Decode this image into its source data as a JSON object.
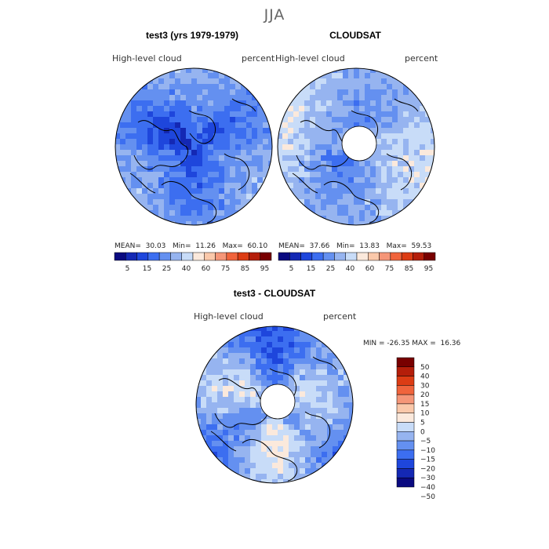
{
  "season": "JJA",
  "panels": [
    {
      "title": "test3 (yrs 1979-1979)",
      "variable": "High-level cloud",
      "units": "percent",
      "stats": {
        "mean": "30.03",
        "min": "11.26",
        "max": "60.10"
      },
      "stats_labels": {
        "mean": "MEAN=",
        "min": "Min=",
        "max": "Max="
      }
    },
    {
      "title": "CLOUDSAT",
      "variable": "High-level cloud",
      "units": "percent",
      "stats": {
        "mean": "37.66",
        "min": "13.83",
        "max": "59.53"
      },
      "stats_labels": {
        "mean": "MEAN=",
        "min": "Min=",
        "max": "Max="
      }
    },
    {
      "title": "test3 - CLOUDSAT",
      "variable": "High-level cloud",
      "units": "percent",
      "stats_line": "MIN = -26.35 MAX =  16.36"
    }
  ],
  "colorbar": {
    "colors": [
      "#0a0a80",
      "#1428b4",
      "#1e46dc",
      "#3c6ef0",
      "#6490f0",
      "#96b4f0",
      "#c8dcf8",
      "#fbe9dc",
      "#fac8aa",
      "#f59678",
      "#f0643c",
      "#dc3c14",
      "#b41e0a",
      "#780000"
    ],
    "labels": [
      "5",
      "15",
      "25",
      "40",
      "60",
      "75",
      "85",
      "95"
    ]
  },
  "diff_colorbar": {
    "colors": [
      "#780000",
      "#b41e0a",
      "#dc3c14",
      "#f0643c",
      "#f59678",
      "#fac8aa",
      "#fbe9dc",
      "#c8dcf8",
      "#96b4f0",
      "#6490f0",
      "#3c6ef0",
      "#1e46dc",
      "#1428b4",
      "#0a0a80"
    ],
    "labels": [
      "50",
      "40",
      "30",
      "20",
      "15",
      "10",
      "5",
      "0",
      "−5",
      "−10",
      "−15",
      "−20",
      "−30",
      "−40",
      "−50"
    ]
  }
}
